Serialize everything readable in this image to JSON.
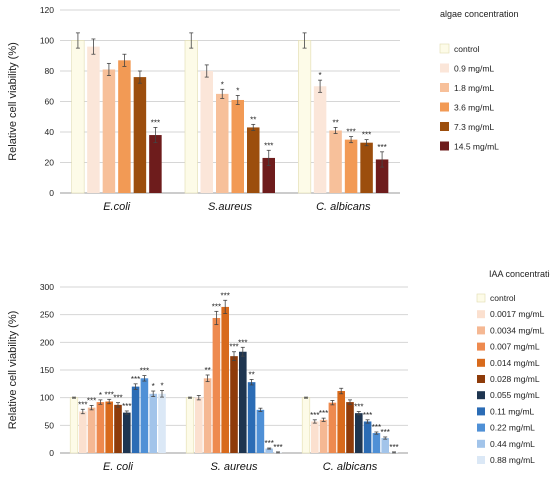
{
  "chart_data": [
    {
      "type": "bar",
      "title": "",
      "xlabel": "",
      "ylabel": "Relative cell viability (%)",
      "ylim": [
        0,
        120
      ],
      "yticks": [
        0,
        20,
        40,
        60,
        80,
        100,
        120
      ],
      "grid": true,
      "legend_position": "right",
      "legend_title": "algae concentration",
      "categories": [
        "E.coli",
        "S.aureus",
        "C. albicans"
      ],
      "series": [
        {
          "name": "control",
          "color": "#fdfbe8",
          "values": [
            100,
            100,
            100
          ],
          "errors": [
            5,
            5,
            5
          ],
          "sig": [
            "",
            "",
            ""
          ]
        },
        {
          "name": "0.9 mg/mL",
          "color": "#fbe6d9",
          "values": [
            96,
            80,
            70
          ],
          "errors": [
            5,
            4,
            4
          ],
          "sig": [
            "",
            "",
            "*"
          ]
        },
        {
          "name": "1.8 mg/mL",
          "color": "#f7c09a",
          "values": [
            81,
            65,
            41
          ],
          "errors": [
            4,
            3,
            2
          ],
          "sig": [
            "",
            "*",
            "**"
          ]
        },
        {
          "name": "3.6 mg/mL",
          "color": "#f29a55",
          "values": [
            87,
            61,
            35
          ],
          "errors": [
            4,
            3,
            2
          ],
          "sig": [
            "",
            "*",
            "***"
          ]
        },
        {
          "name": "7.3 mg/mL",
          "color": "#9c4e0d",
          "values": [
            76,
            43,
            33
          ],
          "errors": [
            4,
            2,
            2
          ],
          "sig": [
            "",
            "**",
            "***"
          ]
        },
        {
          "name": "14.5 mg/mL",
          "color": "#6e1c1c",
          "values": [
            38,
            23,
            22
          ],
          "errors": [
            5,
            5,
            5
          ],
          "sig": [
            "***",
            "***",
            "***"
          ]
        }
      ]
    },
    {
      "type": "bar",
      "title": "",
      "xlabel": "",
      "ylabel": "Relative cell viability (%)",
      "ylim": [
        0,
        300
      ],
      "yticks": [
        0,
        50,
        100,
        150,
        200,
        250,
        300
      ],
      "grid": true,
      "legend_position": "right",
      "legend_title": "IAA concentration",
      "categories": [
        "E. coli",
        "S. aureus",
        "C. albicans"
      ],
      "series": [
        {
          "name": "control",
          "color": "#fdfbe8",
          "values": [
            100,
            100,
            100
          ],
          "errors": [
            1,
            1,
            1
          ],
          "sig": [
            "",
            "",
            ""
          ]
        },
        {
          "name": "0.0017 mg/mL",
          "color": "#fbe0cf",
          "values": [
            75,
            100,
            57
          ],
          "errors": [
            4,
            4,
            3
          ],
          "sig": [
            "***",
            "",
            "***"
          ]
        },
        {
          "name": "0.0034 mg/mL",
          "color": "#f5b893",
          "values": [
            82,
            135,
            60
          ],
          "errors": [
            4,
            6,
            3
          ],
          "sig": [
            "***",
            "**",
            "***"
          ]
        },
        {
          "name": "0.007 mg/mL",
          "color": "#ee8a4f",
          "values": [
            92,
            244,
            91
          ],
          "errors": [
            4,
            12,
            4
          ],
          "sig": [
            "*",
            "***",
            ""
          ]
        },
        {
          "name": "0.014 mg/mL",
          "color": "#d86a1c",
          "values": [
            93,
            264,
            112
          ],
          "errors": [
            4,
            12,
            5
          ],
          "sig": [
            "***",
            "***",
            ""
          ]
        },
        {
          "name": "0.028 mg/mL",
          "color": "#8e3b0a",
          "values": [
            87,
            175,
            92
          ],
          "errors": [
            4,
            8,
            4
          ],
          "sig": [
            "***",
            "***",
            ""
          ]
        },
        {
          "name": "0.055 mg/mL",
          "color": "#1e3550",
          "values": [
            73,
            183,
            72
          ],
          "errors": [
            3,
            8,
            3
          ],
          "sig": [
            "***",
            "***",
            "***"
          ]
        },
        {
          "name": "0.11 mg/mL",
          "color": "#2b6cb5",
          "values": [
            120,
            128,
            57
          ],
          "errors": [
            5,
            5,
            3
          ],
          "sig": [
            "***",
            "**",
            "***"
          ]
        },
        {
          "name": "0.22 mg/mL",
          "color": "#4f90d6",
          "values": [
            135,
            78,
            36
          ],
          "errors": [
            5,
            3,
            2
          ],
          "sig": [
            "***",
            "",
            "***"
          ]
        },
        {
          "name": "0.44 mg/mL",
          "color": "#a2c4ea",
          "values": [
            107,
            8,
            27
          ],
          "errors": [
            5,
            1,
            2
          ],
          "sig": [
            "*",
            "***",
            "***"
          ]
        },
        {
          "name": "0.88 mg/mL",
          "color": "#dbe8f6",
          "values": [
            107,
            1,
            1
          ],
          "errors": [
            6,
            1,
            1
          ],
          "sig": [
            "*",
            "***",
            "***"
          ]
        }
      ]
    }
  ]
}
